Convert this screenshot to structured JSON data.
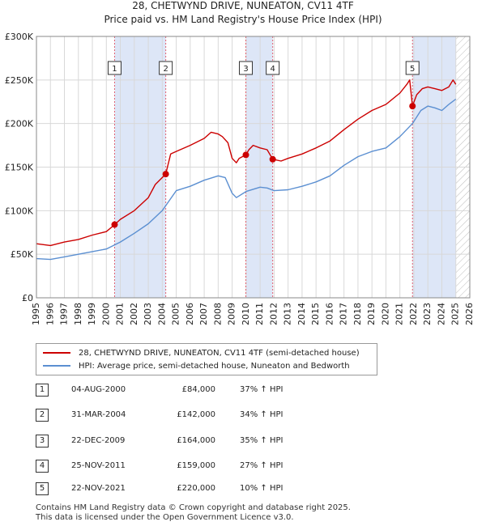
{
  "title_line1": "28, CHETWYND DRIVE, NUNEATON, CV11 4TF",
  "title_line2": "Price paid vs. HM Land Registry's House Price Index (HPI)",
  "legend": {
    "property_label": "28, CHETWYND DRIVE, NUNEATON, CV11 4TF (semi-detached house)",
    "hpi_label": "HPI: Average price, semi-detached house, Nuneaton and Bedworth"
  },
  "sales": [
    {
      "num": "1",
      "date": "04-AUG-2000",
      "price": "£84,000",
      "hpi": "37% ↑ HPI"
    },
    {
      "num": "2",
      "date": "31-MAR-2004",
      "price": "£142,000",
      "hpi": "34% ↑ HPI"
    },
    {
      "num": "3",
      "date": "22-DEC-2009",
      "price": "£164,000",
      "hpi": "35% ↑ HPI"
    },
    {
      "num": "4",
      "date": "25-NOV-2011",
      "price": "£159,000",
      "hpi": "27% ↑ HPI"
    },
    {
      "num": "5",
      "date": "22-NOV-2021",
      "price": "£220,000",
      "hpi": "10% ↑ HPI"
    }
  ],
  "footer_line1": "Contains HM Land Registry data © Crown copyright and database right 2025.",
  "footer_line2": "This data is licensed under the Open Government Licence v3.0.",
  "colors": {
    "property": "#cc0000",
    "hpi": "#5b8fd1",
    "shade": "#dde6f7",
    "marker_line": "#e06070",
    "grid": "#d8d8d8"
  },
  "chart_data": {
    "type": "line",
    "xlim": [
      1995,
      2026
    ],
    "ylim": [
      0,
      300000
    ],
    "x_ticks": [
      1995,
      1996,
      1997,
      1998,
      1999,
      2000,
      2001,
      2002,
      2003,
      2004,
      2005,
      2006,
      2007,
      2008,
      2009,
      2010,
      2011,
      2012,
      2013,
      2014,
      2015,
      2016,
      2017,
      2018,
      2019,
      2020,
      2021,
      2022,
      2023,
      2024,
      2025,
      2026
    ],
    "y_ticks": [
      {
        "value": 0,
        "label": "£0"
      },
      {
        "value": 50000,
        "label": "£50K"
      },
      {
        "value": 100000,
        "label": "£100K"
      },
      {
        "value": 150000,
        "label": "£150K"
      },
      {
        "value": 200000,
        "label": "£200K"
      },
      {
        "value": 250000,
        "label": "£250K"
      },
      {
        "value": 300000,
        "label": "£300K"
      }
    ],
    "grid": true,
    "shaded_ranges": [
      [
        2000.59,
        2004.25
      ],
      [
        2009.98,
        2011.9
      ],
      [
        2021.9,
        2025.0
      ]
    ],
    "hatched_range": [
      2025.0,
      2026.0
    ],
    "sale_points": [
      {
        "label": "1",
        "x": 2000.59,
        "y": 84000
      },
      {
        "label": "2",
        "x": 2004.25,
        "y": 142000
      },
      {
        "label": "3",
        "x": 2009.98,
        "y": 164000
      },
      {
        "label": "4",
        "x": 2011.9,
        "y": 159000
      },
      {
        "label": "5",
        "x": 2021.9,
        "y": 220000
      }
    ],
    "series": [
      {
        "name": "28, CHETWYND DRIVE, NUNEATON, CV11 4TF (semi-detached house)",
        "points": [
          [
            1995.0,
            62000
          ],
          [
            1996.0,
            60000
          ],
          [
            1997.0,
            64000
          ],
          [
            1998.0,
            67000
          ],
          [
            1999.0,
            72000
          ],
          [
            2000.0,
            76000
          ],
          [
            2000.59,
            84000
          ],
          [
            2001.0,
            90000
          ],
          [
            2002.0,
            100000
          ],
          [
            2003.0,
            115000
          ],
          [
            2003.5,
            130000
          ],
          [
            2004.25,
            142000
          ],
          [
            2004.6,
            165000
          ],
          [
            2005.0,
            168000
          ],
          [
            2006.0,
            175000
          ],
          [
            2007.0,
            183000
          ],
          [
            2007.5,
            190000
          ],
          [
            2008.0,
            188000
          ],
          [
            2008.3,
            185000
          ],
          [
            2008.7,
            178000
          ],
          [
            2009.0,
            160000
          ],
          [
            2009.3,
            155000
          ],
          [
            2009.5,
            160000
          ],
          [
            2009.98,
            164000
          ],
          [
            2010.2,
            170000
          ],
          [
            2010.5,
            175000
          ],
          [
            2011.0,
            172000
          ],
          [
            2011.5,
            170000
          ],
          [
            2011.9,
            159000
          ],
          [
            2012.5,
            157000
          ],
          [
            2013.0,
            160000
          ],
          [
            2014.0,
            165000
          ],
          [
            2015.0,
            172000
          ],
          [
            2016.0,
            180000
          ],
          [
            2017.0,
            193000
          ],
          [
            2018.0,
            205000
          ],
          [
            2019.0,
            215000
          ],
          [
            2020.0,
            222000
          ],
          [
            2021.0,
            235000
          ],
          [
            2021.5,
            245000
          ],
          [
            2021.7,
            250000
          ],
          [
            2021.9,
            220000
          ],
          [
            2022.2,
            233000
          ],
          [
            2022.6,
            240000
          ],
          [
            2023.0,
            242000
          ],
          [
            2023.5,
            240000
          ],
          [
            2024.0,
            238000
          ],
          [
            2024.5,
            242000
          ],
          [
            2024.8,
            250000
          ],
          [
            2025.0,
            245000
          ]
        ]
      },
      {
        "name": "HPI: Average price, semi-detached house, Nuneaton and Bedworth",
        "points": [
          [
            1995.0,
            45000
          ],
          [
            1996.0,
            44000
          ],
          [
            1997.0,
            47000
          ],
          [
            1998.0,
            50000
          ],
          [
            1999.0,
            53000
          ],
          [
            2000.0,
            56000
          ],
          [
            2001.0,
            64000
          ],
          [
            2002.0,
            74000
          ],
          [
            2003.0,
            85000
          ],
          [
            2004.0,
            100000
          ],
          [
            2005.0,
            123000
          ],
          [
            2006.0,
            128000
          ],
          [
            2007.0,
            135000
          ],
          [
            2008.0,
            140000
          ],
          [
            2008.5,
            138000
          ],
          [
            2009.0,
            120000
          ],
          [
            2009.3,
            115000
          ],
          [
            2010.0,
            122000
          ],
          [
            2011.0,
            127000
          ],
          [
            2011.5,
            126000
          ],
          [
            2012.0,
            123000
          ],
          [
            2013.0,
            124000
          ],
          [
            2014.0,
            128000
          ],
          [
            2015.0,
            133000
          ],
          [
            2016.0,
            140000
          ],
          [
            2017.0,
            152000
          ],
          [
            2018.0,
            162000
          ],
          [
            2019.0,
            168000
          ],
          [
            2020.0,
            172000
          ],
          [
            2021.0,
            185000
          ],
          [
            2021.9,
            200000
          ],
          [
            2022.5,
            215000
          ],
          [
            2023.0,
            220000
          ],
          [
            2023.5,
            218000
          ],
          [
            2024.0,
            215000
          ],
          [
            2024.5,
            222000
          ],
          [
            2025.0,
            228000
          ]
        ]
      }
    ]
  }
}
